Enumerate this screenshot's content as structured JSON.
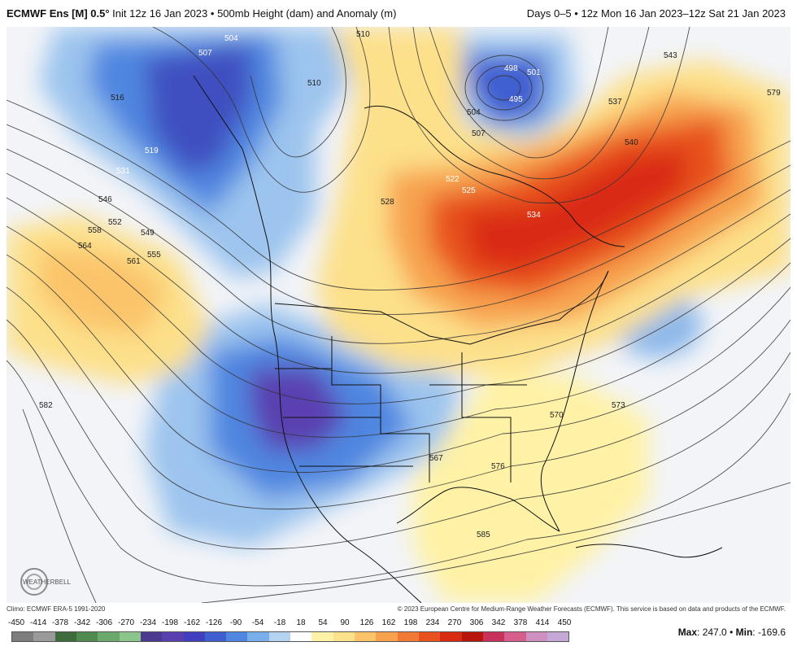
{
  "header": {
    "model": "ECMWF Ens [M] 0.5°",
    "init": "Init 12z 16 Jan 2023",
    "bullet": "•",
    "product": "500mb Height (dam) and Anomaly (m)",
    "days": "Days 0–5",
    "valid": "12z Mon 16 Jan 2023–12z Sat 21 Jan 2023"
  },
  "contour_labels": [
    {
      "text": "504"
    },
    {
      "text": "507"
    },
    {
      "text": "510"
    },
    {
      "text": "510"
    },
    {
      "text": "516"
    },
    {
      "text": "519"
    },
    {
      "text": "531"
    },
    {
      "text": "546"
    },
    {
      "text": "552"
    },
    {
      "text": "549"
    },
    {
      "text": "558"
    },
    {
      "text": "555"
    },
    {
      "text": "564"
    },
    {
      "text": "561"
    },
    {
      "text": "582"
    },
    {
      "text": "498"
    },
    {
      "text": "501"
    },
    {
      "text": "495"
    },
    {
      "text": "504"
    },
    {
      "text": "507"
    },
    {
      "text": "543"
    },
    {
      "text": "537"
    },
    {
      "text": "540"
    },
    {
      "text": "579"
    },
    {
      "text": "528"
    },
    {
      "text": "522"
    },
    {
      "text": "525"
    },
    {
      "text": "534"
    },
    {
      "text": "573"
    },
    {
      "text": "570"
    },
    {
      "text": "567"
    },
    {
      "text": "576"
    },
    {
      "text": "585"
    }
  ],
  "logo_text": "WEATHERBELL",
  "credits": {
    "left": "Climo: ECMWF ERA-5 1991-2020",
    "right": "© 2023 European Centre for Medium-Range Weather Forecasts (ECMWF). This service is based on data and products of the ECMWF."
  },
  "legend": {
    "labels": [
      "-450",
      "-414",
      "-378",
      "-342",
      "-306",
      "-270",
      "-234",
      "-198",
      "-162",
      "-126",
      "-90",
      "-54",
      "-18",
      "18",
      "54",
      "90",
      "126",
      "162",
      "198",
      "234",
      "270",
      "306",
      "342",
      "378",
      "414",
      "450"
    ],
    "colors": [
      "#7d7d7d",
      "#9a9a9a",
      "#3d6b3d",
      "#4f8a4f",
      "#6aa96a",
      "#8cc58c",
      "#4b3a8f",
      "#5a3fb0",
      "#3f3fc0",
      "#3f5fd0",
      "#4f86e0",
      "#78aeea",
      "#b4d2f2",
      "#ffffff",
      "#fff2a6",
      "#fde08a",
      "#fbc46a",
      "#f7a24d",
      "#f07a35",
      "#e8521f",
      "#d92a12",
      "#b8160d",
      "#c8325a",
      "#d65e8c",
      "#cf8fc0",
      "#c6a8d8"
    ]
  },
  "maxmin": {
    "max_label": "Max",
    "max_value": "247.0",
    "sep": "•",
    "min_label": "Min",
    "min_value": "-169.6"
  },
  "colors": {
    "negative_anomaly": "#3f5fd0",
    "positive_anomaly": "#e8521f",
    "neutral": "#f2f4f8",
    "contour": "#333333"
  }
}
